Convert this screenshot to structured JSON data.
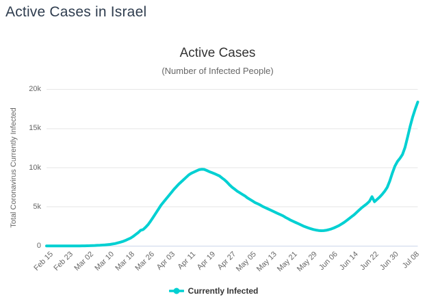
{
  "page": {
    "title": "Active Cases in Israel"
  },
  "chart": {
    "title": "Active Cases",
    "subtitle": "(Number of Infected People)",
    "y_axis_title": "Total Coronavirus Currently Infected",
    "legend": {
      "label": "Currently Infected"
    }
  },
  "colors": {
    "series": "#00d0d2",
    "gridline": "#e6e6e6",
    "axis_line": "#ccd6eb",
    "page_title": "#2e3c4e",
    "chart_title": "#333333",
    "labels": "#666666",
    "legend_text": "#333333"
  },
  "chart_data": {
    "type": "line",
    "title": "Active Cases",
    "subtitle": "(Number of Infected People)",
    "ylabel": "Total Coronavirus Currently Infected",
    "xlabel": "",
    "ylim": [
      0,
      20000
    ],
    "y_ticks": [
      0,
      5000,
      10000,
      15000,
      20000
    ],
    "y_tick_labels": [
      "0",
      "5k",
      "10k",
      "15k",
      "20k"
    ],
    "x_tick_labels": [
      "Feb 15",
      "Feb 23",
      "Mar 02",
      "Mar 10",
      "Mar 18",
      "Mar 26",
      "Apr 03",
      "Apr 11",
      "Apr 19",
      "Apr 27",
      "May 05",
      "May 13",
      "May 21",
      "May 29",
      "Jun 06",
      "Jun 14",
      "Jun 22",
      "Jun 30",
      "Jul 08"
    ],
    "x_tick_interval_days": 8,
    "grid": "horizontal",
    "legend_position": "bottom",
    "series": [
      {
        "name": "Currently Infected",
        "cadence": "daily",
        "values": [
          1,
          1,
          1,
          2,
          2,
          2,
          3,
          3,
          4,
          6,
          7,
          8,
          10,
          12,
          15,
          20,
          28,
          38,
          50,
          62,
          75,
          90,
          110,
          135,
          165,
          200,
          250,
          310,
          390,
          480,
          580,
          700,
          850,
          1000,
          1200,
          1450,
          1700,
          2000,
          2100,
          2400,
          2750,
          3200,
          3700,
          4200,
          4700,
          5200,
          5600,
          6000,
          6400,
          6800,
          7200,
          7550,
          7900,
          8200,
          8500,
          8800,
          9100,
          9300,
          9450,
          9600,
          9750,
          9800,
          9780,
          9650,
          9500,
          9380,
          9250,
          9100,
          8950,
          8700,
          8450,
          8150,
          7800,
          7500,
          7250,
          7000,
          6800,
          6600,
          6400,
          6150,
          5950,
          5750,
          5550,
          5400,
          5250,
          5050,
          4900,
          4750,
          4600,
          4450,
          4300,
          4150,
          4000,
          3850,
          3650,
          3480,
          3300,
          3150,
          3000,
          2850,
          2700,
          2550,
          2420,
          2300,
          2200,
          2100,
          2030,
          1980,
          1950,
          1960,
          2000,
          2080,
          2180,
          2300,
          2450,
          2600,
          2800,
          3000,
          3250,
          3500,
          3750,
          4000,
          4300,
          4600,
          4900,
          5150,
          5400,
          5700,
          6300,
          5650,
          5950,
          6250,
          6600,
          7000,
          7500,
          8300,
          9300,
          10200,
          10800,
          11200,
          11700,
          12600,
          13900,
          15300,
          16500,
          17500,
          18400
        ]
      }
    ]
  }
}
